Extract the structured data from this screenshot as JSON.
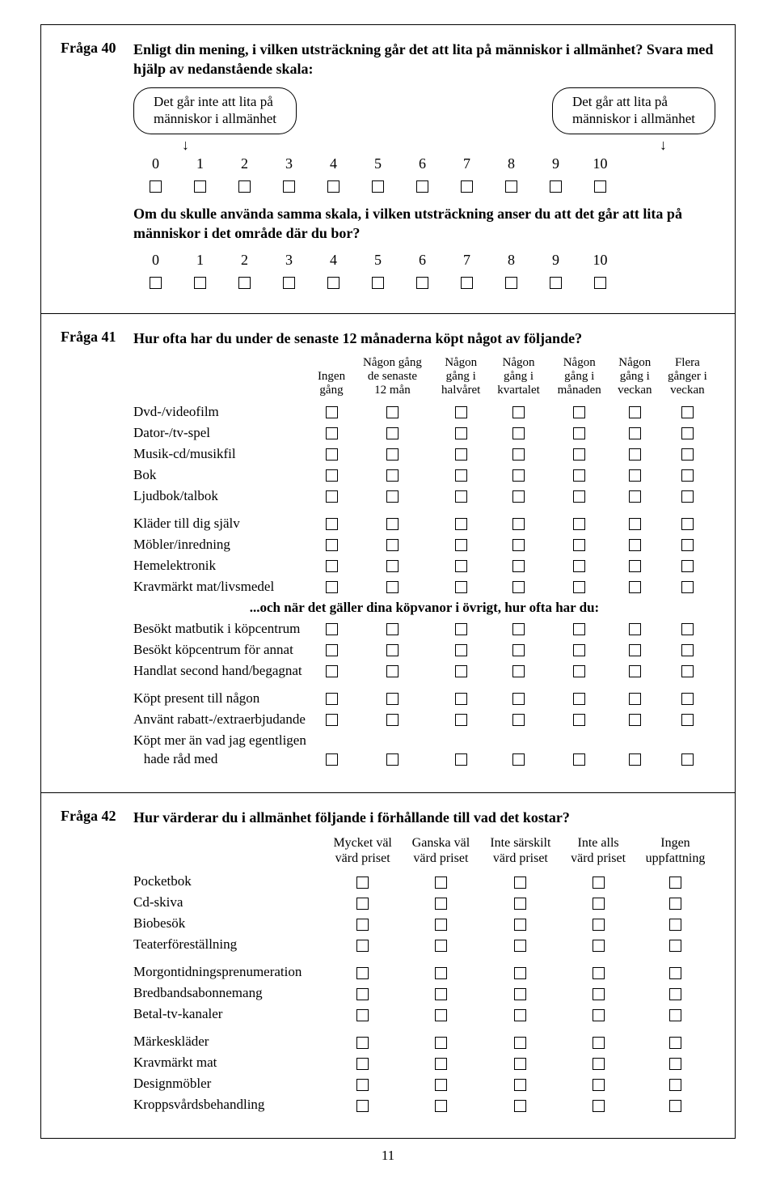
{
  "page_number": "11",
  "q40": {
    "label": "Fråga 40",
    "title": "Enligt din mening, i vilken utsträckning går det att lita på människor i allmänhet? Svara med hjälp av nedanstående skala:",
    "pill_left_l1": "Det går inte att lita på",
    "pill_left_l2": "människor i allmänhet",
    "pill_right_l1": "Det går att lita på",
    "pill_right_l2": "människor i allmänhet",
    "scale": [
      "0",
      "1",
      "2",
      "3",
      "4",
      "5",
      "6",
      "7",
      "8",
      "9",
      "10"
    ],
    "sub_title": "Om du skulle använda samma skala, i vilken utsträckning anser du att det går att lita på människor i det område där du bor?"
  },
  "q41": {
    "label": "Fråga 41",
    "title": "Hur ofta har du under de senaste 12 månaderna köpt något av följande?",
    "cols": [
      {
        "l1": "Ingen",
        "l2": "gång",
        "l3": ""
      },
      {
        "l1": "Någon gång",
        "l2": "de senaste",
        "l3": "12 mån"
      },
      {
        "l1": "Någon",
        "l2": "gång i",
        "l3": "halvåret"
      },
      {
        "l1": "Någon",
        "l2": "gång i",
        "l3": "kvartalet"
      },
      {
        "l1": "Någon",
        "l2": "gång i",
        "l3": "månaden"
      },
      {
        "l1": "Någon",
        "l2": "gång i",
        "l3": "veckan"
      },
      {
        "l1": "Flera",
        "l2": "gånger i",
        "l3": "veckan"
      }
    ],
    "group1": [
      "Dvd-/videofilm",
      "Dator-/tv-spel",
      "Musik-cd/musikfil",
      "Bok",
      "Ljudbok/talbok"
    ],
    "group2": [
      "Kläder till dig själv",
      "Möbler/inredning",
      "Hemelektronik",
      "Kravmärkt mat/livsmedel"
    ],
    "sub_heading": "...och när det gäller dina köpvanor i övrigt, hur ofta har du:",
    "group3": [
      "Besökt matbutik i köpcentrum",
      "Besökt köpcentrum för annat",
      "Handlat second hand/begagnat"
    ],
    "group4_a": "Köpt present till någon",
    "group4_b": "Använt rabatt-/extraerbjudande",
    "group4_c1": "Köpt mer än vad jag egentligen",
    "group4_c2": "   hade råd med"
  },
  "q42": {
    "label": "Fråga 42",
    "title": "Hur värderar du i allmänhet följande i förhållande till vad det kostar?",
    "cols": [
      {
        "l1": "Mycket väl",
        "l2": "värd priset"
      },
      {
        "l1": "Ganska väl",
        "l2": "värd priset"
      },
      {
        "l1": "Inte särskilt",
        "l2": "värd priset"
      },
      {
        "l1": "Inte alls",
        "l2": "värd priset"
      },
      {
        "l1": "Ingen",
        "l2": "uppfattning"
      }
    ],
    "group1": [
      "Pocketbok",
      "Cd-skiva",
      "Biobesök",
      "Teaterföreställning"
    ],
    "group2": [
      "Morgontidningsprenumeration",
      "Bredbandsabonnemang",
      "Betal-tv-kanaler"
    ],
    "group3": [
      "Märkeskläder",
      "Kravmärkt mat",
      "Designmöbler",
      "Kroppsvårdsbehandling"
    ]
  }
}
